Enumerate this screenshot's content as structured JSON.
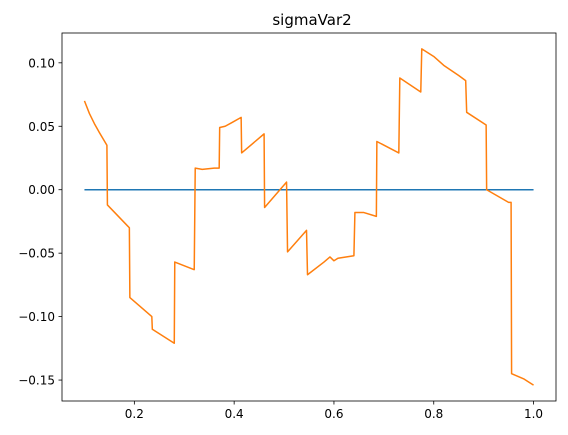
{
  "chart_data": {
    "type": "line",
    "title": "sigmaVar2",
    "xlabel": "",
    "ylabel": "",
    "xlim": [
      0.055,
      1.045
    ],
    "ylim": [
      -0.1665,
      0.1235
    ],
    "x_ticks": [
      0.2,
      0.4,
      0.6,
      0.8,
      1.0
    ],
    "x_tick_labels": [
      "0.2",
      "0.4",
      "0.6",
      "0.8",
      "1.0"
    ],
    "y_ticks": [
      -0.15,
      -0.1,
      -0.05,
      0.0,
      0.05,
      0.1
    ],
    "y_tick_labels": [
      "−0.15",
      "−0.10",
      "−0.05",
      "0.00",
      "0.05",
      "0.10"
    ],
    "grid": false,
    "series": [
      {
        "color": "#1f77b4",
        "x": [
          0.1,
          1.0
        ],
        "y": [
          0.0,
          0.0
        ]
      },
      {
        "color": "#ff7f0e",
        "x": [
          0.1,
          0.11,
          0.12,
          0.13,
          0.145,
          0.146,
          0.19,
          0.191,
          0.235,
          0.236,
          0.28,
          0.281,
          0.32,
          0.322,
          0.336,
          0.36,
          0.37,
          0.371,
          0.382,
          0.396,
          0.414,
          0.415,
          0.46,
          0.461,
          0.505,
          0.507,
          0.545,
          0.547,
          0.58,
          0.592,
          0.6,
          0.608,
          0.64,
          0.642,
          0.66,
          0.685,
          0.686,
          0.73,
          0.732,
          0.774,
          0.776,
          0.8,
          0.82,
          0.85,
          0.864,
          0.866,
          0.905,
          0.906,
          0.95,
          0.955,
          0.956,
          0.98,
          1.0
        ],
        "y": [
          0.07,
          0.06,
          0.052,
          0.045,
          0.035,
          -0.012,
          -0.03,
          -0.085,
          -0.1,
          -0.11,
          -0.121,
          -0.057,
          -0.063,
          0.017,
          0.016,
          0.017,
          0.017,
          0.049,
          0.05,
          0.053,
          0.057,
          0.029,
          0.044,
          -0.014,
          0.006,
          -0.049,
          -0.032,
          -0.067,
          -0.057,
          -0.053,
          -0.056,
          -0.054,
          -0.052,
          -0.018,
          -0.018,
          -0.021,
          0.038,
          0.029,
          0.088,
          0.077,
          0.111,
          0.105,
          0.098,
          0.09,
          0.086,
          0.061,
          0.051,
          0.0,
          -0.01,
          -0.01,
          -0.145,
          -0.149,
          -0.154
        ]
      }
    ]
  }
}
